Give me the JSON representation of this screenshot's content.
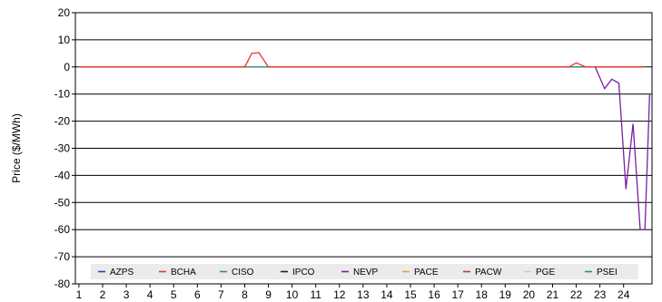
{
  "chart_data": {
    "type": "line",
    "xlabel": "",
    "ylabel": "Price ($/MWh)",
    "ylim": [
      -80,
      20
    ],
    "xlim": [
      1,
      24.9
    ],
    "y_ticks": [
      20,
      10,
      0,
      -10,
      -20,
      -30,
      -40,
      -50,
      -60,
      -70,
      -80
    ],
    "x_ticks": [
      1,
      2,
      3,
      4,
      5,
      6,
      7,
      8,
      9,
      10,
      11,
      12,
      13,
      14,
      15,
      16,
      17,
      18,
      19,
      20,
      21,
      22,
      23,
      24
    ],
    "grid": "horizontal",
    "legend_position": "bottom-inside",
    "series": [
      {
        "name": "AZPS",
        "color": "#1f3fbf",
        "points": [
          [
            1,
            0
          ],
          [
            24.9,
            0
          ]
        ]
      },
      {
        "name": "BCHA",
        "color": "#e8332a",
        "points": [
          [
            1,
            0
          ],
          [
            8,
            0
          ],
          [
            8.3,
            5
          ],
          [
            8.6,
            5.3
          ],
          [
            9,
            0
          ],
          [
            21.7,
            0
          ],
          [
            22,
            1.5
          ],
          [
            22.4,
            0
          ],
          [
            24.9,
            0
          ]
        ]
      },
      {
        "name": "CISO",
        "color": "#2ca02c",
        "points": [
          [
            1,
            0
          ],
          [
            24.9,
            0
          ]
        ]
      },
      {
        "name": "IPCO",
        "color": "#222222",
        "points": [
          [
            1,
            0
          ],
          [
            24.9,
            0
          ]
        ]
      },
      {
        "name": "NEVP",
        "color": "#7b1fa2",
        "points": [
          [
            22.8,
            0
          ],
          [
            23.2,
            -8
          ],
          [
            23.5,
            -4.5
          ],
          [
            23.8,
            -6
          ],
          [
            24.1,
            -45
          ],
          [
            24.4,
            -21
          ],
          [
            24.7,
            -60
          ],
          [
            24.9,
            -60
          ],
          [
            25.1,
            -10
          ]
        ]
      },
      {
        "name": "PACE",
        "color": "#f0a030",
        "points": [
          [
            1,
            0
          ],
          [
            24.9,
            0
          ]
        ]
      },
      {
        "name": "PACW",
        "color": "#c0392b",
        "points": [
          [
            1,
            0
          ],
          [
            24.9,
            0
          ]
        ]
      },
      {
        "name": "PGE",
        "color": "#f4b8c8",
        "points": [
          [
            1,
            0
          ],
          [
            24.9,
            0
          ]
        ]
      },
      {
        "name": "PSEI",
        "color": "#2e8b7a",
        "points": [
          [
            1,
            0
          ],
          [
            24.9,
            0
          ]
        ]
      }
    ]
  }
}
